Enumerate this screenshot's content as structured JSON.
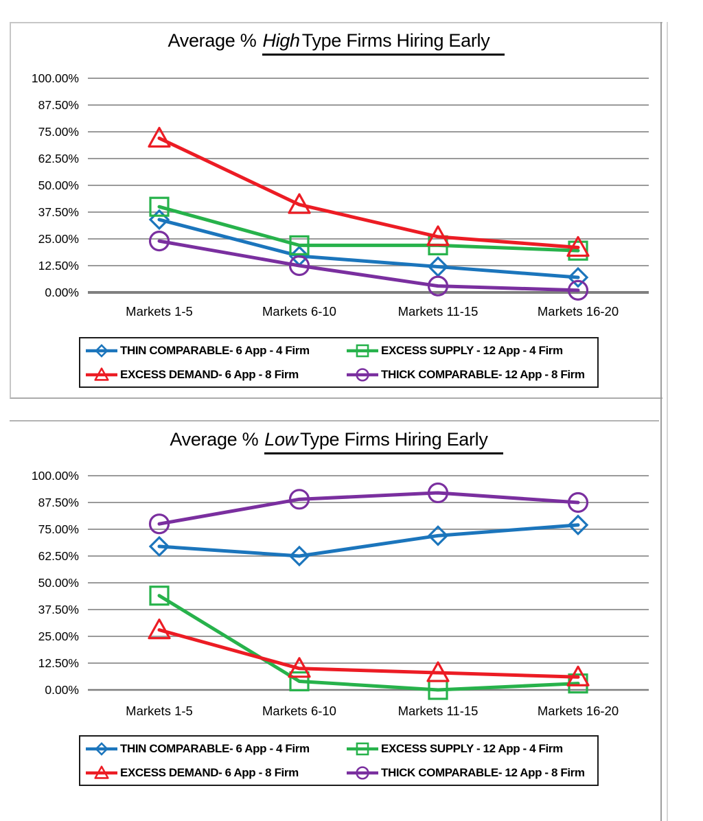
{
  "chart_data": [
    {
      "type": "line",
      "title": "Average % High Type Firms Hiring Early",
      "title_prefix": "Average %",
      "title_type": "High",
      "title_suffix": "Type Firms Hiring Early",
      "categories": [
        "Markets 1-5",
        "Markets 6-10",
        "Markets 11-15",
        "Markets 16-20"
      ],
      "y_tick_labels": [
        "100.00%",
        "87.50%",
        "75.00%",
        "62.50%",
        "50.00%",
        "37.50%",
        "25.00%",
        "12.50%",
        "0.00%"
      ],
      "ylim": [
        0,
        100
      ],
      "y_tick_step": 12.5,
      "grid": true,
      "legend_position": "bottom",
      "series": [
        {
          "name": "THIN COMPARABLE- 6 App - 4 Firm",
          "color": "#1B75BC",
          "marker": "diamond",
          "values": [
            34,
            17,
            12,
            7
          ]
        },
        {
          "name": "EXCESS SUPPLY - 12 App - 4 Firm",
          "color": "#27B24B",
          "marker": "square",
          "values": [
            40,
            22,
            22,
            19.5
          ]
        },
        {
          "name": "EXCESS DEMAND- 6 App - 8 Firm",
          "color": "#EC1C24",
          "marker": "triangle",
          "values": [
            72,
            41,
            26,
            21
          ]
        },
        {
          "name": "THICK COMPARABLE- 12 App - 8 Firm",
          "color": "#7A2F9F",
          "marker": "circle",
          "values": [
            24,
            12.5,
            3,
            1
          ]
        }
      ]
    },
    {
      "type": "line",
      "title": "Average % Low Type Firms Hiring Early",
      "title_prefix": "Average %",
      "title_type": "Low",
      "title_suffix": "Type Firms Hiring Early",
      "categories": [
        "Markets 1-5",
        "Markets 6-10",
        "Markets 11-15",
        "Markets 16-20"
      ],
      "y_tick_labels": [
        "100.00%",
        "87.50%",
        "75.00%",
        "62.50%",
        "50.00%",
        "37.50%",
        "25.00%",
        "12.50%",
        "0.00%"
      ],
      "ylim": [
        0,
        100
      ],
      "y_tick_step": 12.5,
      "grid": true,
      "legend_position": "bottom",
      "series": [
        {
          "name": "THIN COMPARABLE- 6 App - 4 Firm",
          "color": "#1B75BC",
          "marker": "diamond",
          "values": [
            67,
            62.5,
            72,
            77
          ]
        },
        {
          "name": "EXCESS SUPPLY - 12 App - 4 Firm",
          "color": "#27B24B",
          "marker": "square",
          "values": [
            44,
            4,
            0,
            3
          ]
        },
        {
          "name": "EXCESS DEMAND- 6 App - 8 Firm",
          "color": "#EC1C24",
          "marker": "triangle",
          "values": [
            28,
            10,
            8,
            6
          ]
        },
        {
          "name": "THICK COMPARABLE- 12 App - 8 Firm",
          "color": "#7A2F9F",
          "marker": "circle",
          "values": [
            77.5,
            89,
            92,
            87.5
          ]
        }
      ]
    }
  ]
}
